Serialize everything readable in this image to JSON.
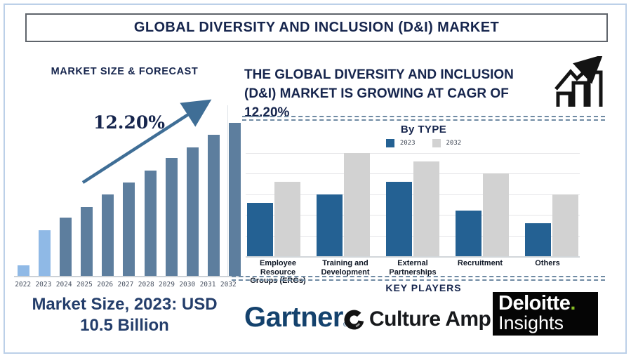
{
  "page": {
    "title": "GLOBAL DIVERSITY AND INCLUSION (D&I) MARKET"
  },
  "left_panel": {
    "heading": "MARKET SIZE & FORECAST",
    "cagr_annotation": "12.20%",
    "market_size_lines": [
      "Market Size, 2023: USD",
      "10.5 Billion"
    ]
  },
  "right_panel": {
    "headline_lines": [
      "THE GLOBAL DIVERSITY AND INCLUSION",
      "(D&I) MARKET IS GROWING AT CAGR OF",
      "12.20%"
    ],
    "by_type_heading": "By TYPE",
    "key_players_heading": "KEY PLAYERS",
    "logos": {
      "gartner": {
        "text": "Gartner",
        "mark": "®"
      },
      "culture_amp": {
        "text": "Culture Amp"
      },
      "deloitte": {
        "line1": "Deloitte",
        "dot": ".",
        "line2": "Insights"
      }
    }
  },
  "icons": [
    "growth-chart-icon",
    "trend-arrow-icon",
    "culture-amp-c-icon"
  ],
  "colors": {
    "navy_text": "#16254d",
    "frame_border": "#bcd0e8",
    "dashed_divider": "#6f8aa3",
    "forecast_bar_default": "#5d7e9e",
    "forecast_bar_highlight": "#8fb9e6",
    "trend_arrow": "#3f6e96",
    "bytype_2023": "#246193",
    "bytype_2032": "#d2d2d2",
    "gartner_navy": "#14426d",
    "deloitte_green": "#86bc25"
  },
  "chart_data": [
    {
      "id": "market-size-forecast",
      "type": "bar",
      "title": "MARKET SIZE & FORECAST",
      "categories": [
        "2022",
        "2023",
        "2024",
        "2025",
        "2026",
        "2027",
        "2028",
        "2029",
        "2030",
        "2031",
        "2032"
      ],
      "relative_heights": [
        7,
        30,
        38,
        45,
        53,
        61,
        69,
        77,
        84,
        92,
        100
      ],
      "values_axis_shown": false,
      "known_points": {
        "2023_usd_billion": 10.5
      },
      "cagr_percent": 12.2,
      "annotation": "12.20%",
      "highlight_categories": [
        "2022",
        "2023"
      ],
      "bar_color_default": "#5d7e9e",
      "bar_color_highlight": "#8fb9e6",
      "grid": false,
      "xlabel": "",
      "ylabel": ""
    },
    {
      "id": "by-type",
      "type": "bar",
      "title": "By TYPE",
      "categories": [
        "Employee Resource\nGroups (ERGs)",
        "Training and\nDevelopment",
        "External\nPartnerships",
        "Recruitment",
        "Others"
      ],
      "series": [
        {
          "name": "2023",
          "color": "#246193",
          "values": [
            2.6,
            3.0,
            3.6,
            2.2,
            1.6
          ]
        },
        {
          "name": "2032",
          "color": "#d2d2d2",
          "values": [
            3.6,
            5.0,
            4.6,
            4.0,
            3.0
          ]
        }
      ],
      "value_unit": "relative gridline units (no numeric axis labels shown)",
      "ylim": [
        0,
        5
      ],
      "grid": true,
      "legend_position": "top",
      "xlabel": "",
      "ylabel": ""
    }
  ]
}
